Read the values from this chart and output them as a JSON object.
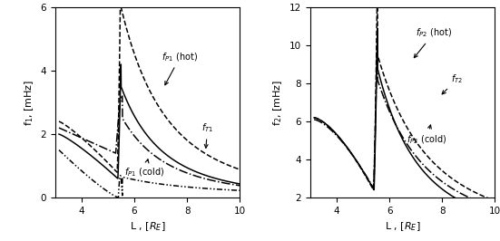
{
  "left": {
    "ylabel": "f$_1$, [mHz]",
    "xlabel": "L , [$R_E$]",
    "ylim": [
      0,
      6
    ],
    "xlim": [
      3,
      10
    ],
    "yticks": [
      0,
      2,
      4,
      6
    ],
    "xticks": [
      4,
      6,
      8,
      10
    ]
  },
  "right": {
    "ylabel": "f$_2$, [mHz]",
    "xlabel": "L , [$R_E$]",
    "ylim": [
      2,
      12
    ],
    "xlim": [
      3,
      10
    ],
    "yticks": [
      2,
      4,
      6,
      8,
      10,
      12
    ],
    "xticks": [
      4,
      6,
      8,
      10
    ]
  }
}
